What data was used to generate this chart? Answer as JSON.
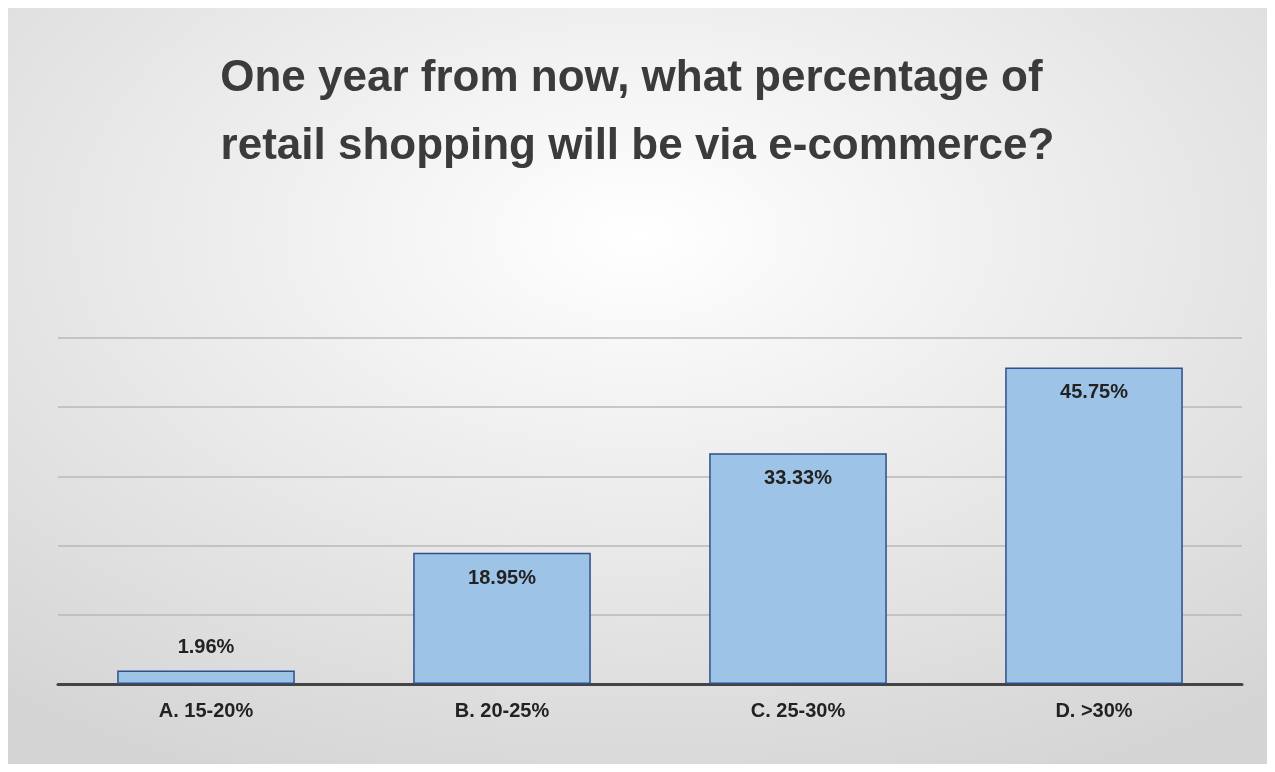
{
  "chart_data": {
    "type": "bar",
    "title": "One year from now, what percentage of retail shopping will be via e-commerce?",
    "categories": [
      "A. 15-20%",
      "B. 20-25%",
      "C. 25-30%",
      "D. >30%"
    ],
    "values": [
      1.96,
      18.95,
      33.33,
      45.75
    ],
    "value_labels": [
      "1.96%",
      "18.95%",
      "33.33%",
      "45.75%"
    ],
    "color": "#9dc3e6",
    "ylim": [
      0,
      50
    ],
    "grid": "y",
    "tick_labels": "x"
  }
}
